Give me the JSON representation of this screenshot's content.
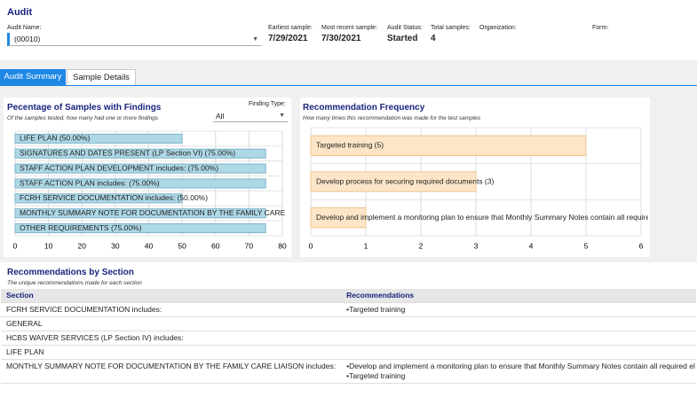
{
  "header": {
    "title": "Audit",
    "audit_name_label": "Audit Name:",
    "audit_name_value": "(00010)",
    "fields": [
      {
        "label": "Earliest sample:",
        "value": "7/29/2021"
      },
      {
        "label": "Most recent sample:",
        "value": "7/30/2021"
      },
      {
        "label": "Audit Status:",
        "value": "Started"
      },
      {
        "label": "Total samples:",
        "value": 4
      },
      {
        "label": "Organization:"
      },
      {
        "label": "Form:"
      }
    ]
  },
  "tabs": [
    "Audit Summary",
    "Sample Details"
  ],
  "chart_data": [
    {
      "type": "bar",
      "title": "Pecentage of Samples with Findings",
      "subtitle": "Of the samples tested, how many had one or more findings",
      "filter_label": "Finding Type:",
      "filter_value": "All",
      "categories": [
        "LIFE PLAN (50.00%)",
        "SIGNATURES AND DATES PRESENT (LP Section VI) (75.00%)",
        "STAFF ACTION PLAN DEVELOPMENT includes: (75.00%)",
        "STAFF ACTION PLAN includes: (75.00%)",
        "FCRH SERVICE DOCUMENTATION includes: (50.00%)",
        "MONTHLY SUMMARY NOTE FOR DOCUMENTATION BY THE FAMILY CARE",
        "OTHER REQUIREMENTS (75.00%)"
      ],
      "values": [
        50,
        75,
        75,
        75,
        50,
        75,
        75
      ],
      "color": "#add8e6",
      "border": "#7fb4cc",
      "xlim": [
        0,
        80
      ],
      "xticks": [
        0,
        10,
        20,
        30,
        40,
        50,
        60,
        70,
        80
      ],
      "grid": true
    },
    {
      "type": "bar",
      "title": "Recommendation Frequency",
      "subtitle": "How many times this recommendation was made for the test samples",
      "categories": [
        "Targeted training (5)",
        "Develop process for securing required documents (3)",
        "Develop and implement a monitoring plan to ensure that Monthly Summary Notes contain all require"
      ],
      "values": [
        5,
        3,
        1
      ],
      "color": "#fde6c8",
      "border": "#f0c48c",
      "xlim": [
        0,
        6
      ],
      "xticks": [
        0,
        1,
        2,
        3,
        4,
        5,
        6
      ],
      "grid": true
    }
  ],
  "table": {
    "title": "Recommendations by Section",
    "subtitle": "The unique recommendations made for each section",
    "columns": [
      "Section",
      "Recommendations"
    ],
    "rows": [
      [
        "FCRH SERVICE DOCUMENTATION includes:",
        [
          "•Targeted training"
        ]
      ],
      [
        "GENERAL",
        []
      ],
      [
        "HCBS WAIVER SERVICES (LP Section IV) includes:",
        []
      ],
      [
        "LIFE PLAN",
        []
      ],
      [
        "MONTHLY SUMMARY NOTE FOR DOCUMENTATION BY THE FAMILY CARE LIAISON includes:",
        [
          "•Develop and implement a monitoring plan to ensure that Monthly Summary Notes contain all required el",
          "•Targeted training"
        ]
      ]
    ]
  }
}
